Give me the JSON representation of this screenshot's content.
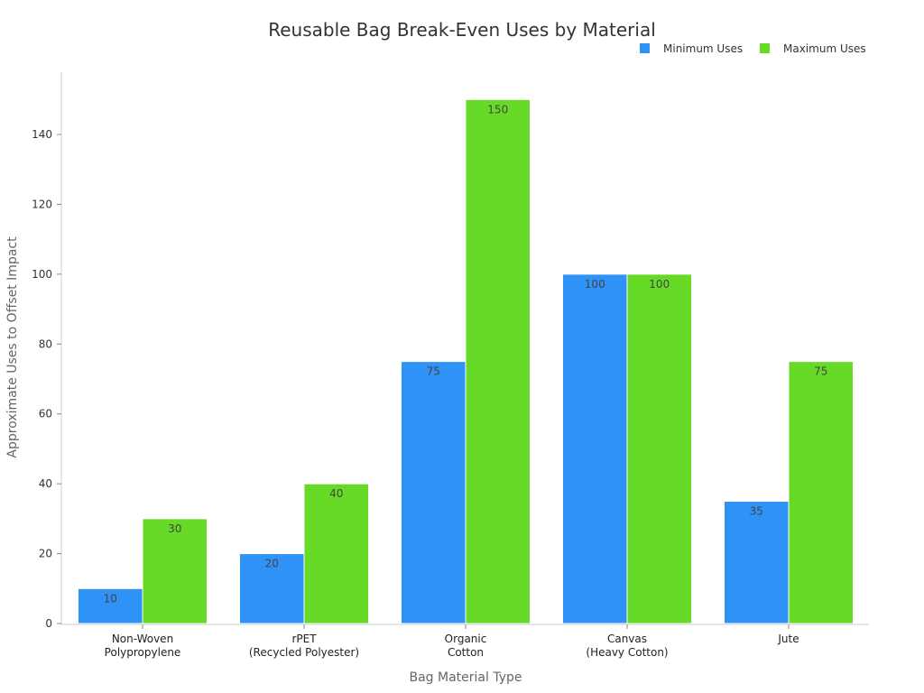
{
  "chart_data": {
    "type": "bar",
    "title": "Reusable Bag Break-Even Uses by Material",
    "xlabel": "Bag Material Type",
    "ylabel": "Approximate Uses to Offset Impact",
    "categories": [
      [
        "Non-Woven",
        "Polypropylene"
      ],
      [
        "rPET",
        "(Recycled Polyester)"
      ],
      [
        "Organic",
        "Cotton"
      ],
      [
        "Canvas",
        "(Heavy Cotton)"
      ],
      [
        "Jute"
      ]
    ],
    "series": [
      {
        "name": "Minimum Uses",
        "color": "#2f92f7",
        "values": [
          10,
          20,
          75,
          100,
          35
        ]
      },
      {
        "name": "Maximum Uses",
        "color": "#66da26",
        "values": [
          30,
          40,
          150,
          100,
          75
        ]
      }
    ],
    "yticks": [
      0,
      20,
      40,
      60,
      80,
      100,
      120,
      140
    ],
    "ylim": [
      0,
      158
    ],
    "grid": false,
    "legend": "top-right"
  }
}
